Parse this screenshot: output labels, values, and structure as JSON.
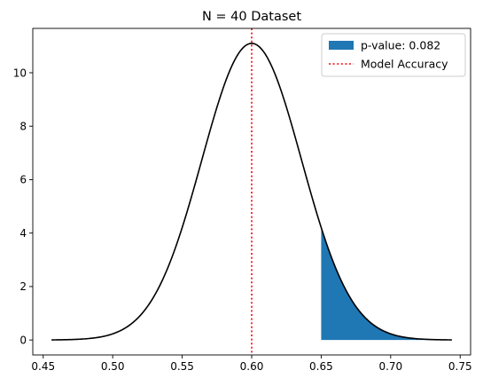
{
  "chart_data": {
    "type": "line",
    "title": "N = 40 Dataset",
    "xlabel": "",
    "ylabel": "",
    "xlim": [
      0.4425,
      0.7575
    ],
    "ylim": [
      -0.56,
      11.66
    ],
    "xticks": [
      0.45,
      0.5,
      0.55,
      0.6,
      0.65,
      0.7,
      0.75
    ],
    "xtick_labels": [
      "0.45",
      "0.50",
      "0.55",
      "0.60",
      "0.65",
      "0.70",
      "0.75"
    ],
    "yticks": [
      0,
      2,
      4,
      6,
      8,
      10
    ],
    "ytick_labels": [
      "0",
      "2",
      "4",
      "6",
      "8",
      "10"
    ],
    "grid": false,
    "legend_position": "top-right",
    "series": [
      {
        "kind": "curve",
        "description_type": "normal-density",
        "mean": 0.6,
        "sd": 0.0359,
        "x_range": [
          0.456,
          0.744
        ],
        "peak_value": 11.1,
        "color": "#000000"
      }
    ],
    "shaded_region": {
      "name": "p-value: 0.082",
      "x_from": 0.65,
      "x_to": 0.744,
      "color": "#1f77b4"
    },
    "reference_line": {
      "name": "Model Accuracy",
      "x": 0.6,
      "style": "dotted",
      "color": "#ff0000"
    }
  }
}
